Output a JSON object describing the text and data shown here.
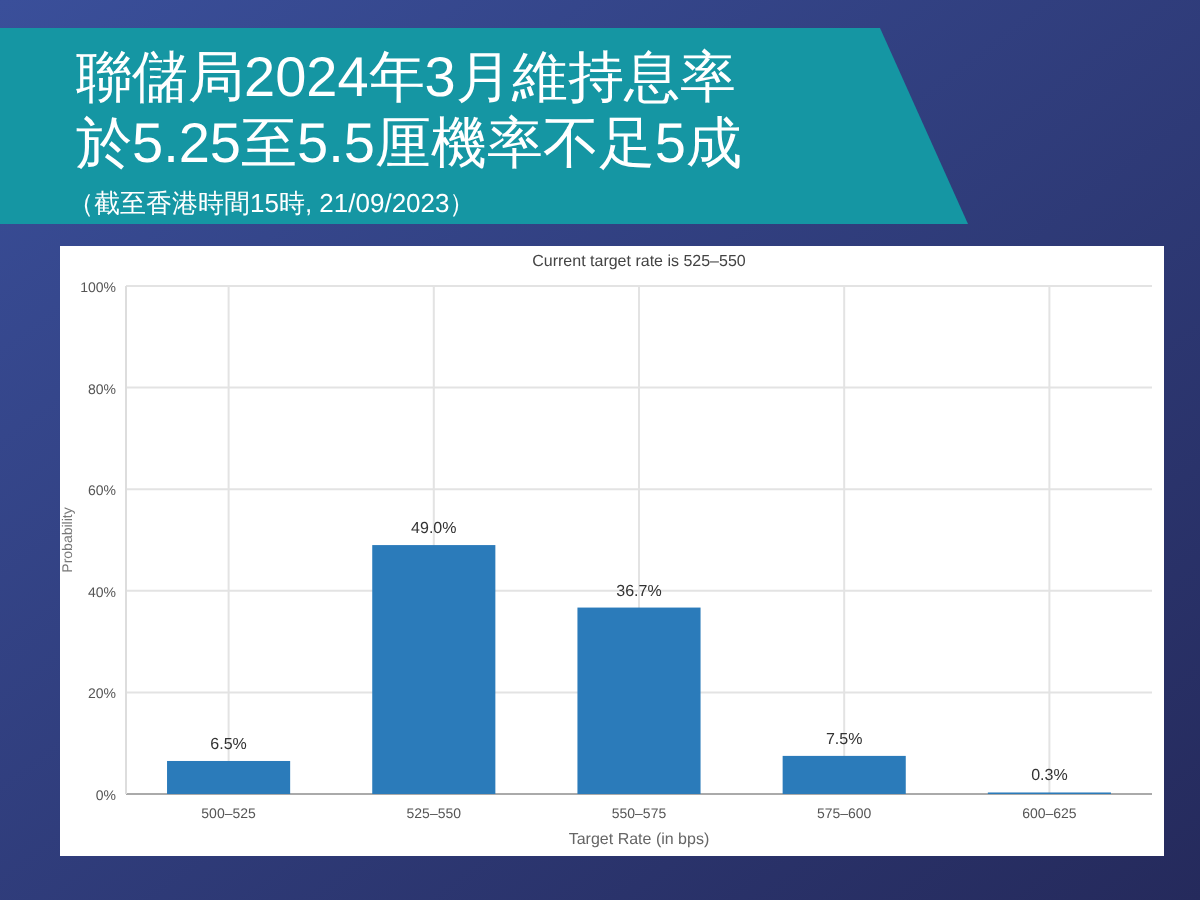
{
  "chart_data": {
    "type": "bar",
    "title": "聯儲局2024年3月維持息率於5.25至5.5厘機率不足5成",
    "subtitle": "Current target rate is 525–550",
    "annotations": [
      "（截至香港時間15時, 21/09/2023）"
    ],
    "xlabel": "Target Rate (in bps)",
    "ylabel": "Probability",
    "categories": [
      "500–525",
      "525–550",
      "550–575",
      "575–600",
      "600–625"
    ],
    "values": [
      6.5,
      49.0,
      36.7,
      7.5,
      0.3
    ],
    "color": "#2b7bba",
    "value_labels": [
      "6.5%",
      "49.0%",
      "36.7%",
      "7.5%",
      "0.3%"
    ],
    "ylim": [
      0,
      100
    ],
    "yticks": [
      {
        "value": 0,
        "label": "0%"
      },
      {
        "value": 20,
        "label": "20%"
      },
      {
        "value": 40,
        "label": "40%"
      },
      {
        "value": 60,
        "label": "60%"
      },
      {
        "value": 80,
        "label": "80%"
      },
      {
        "value": 100,
        "label": "100%"
      }
    ],
    "grid": true
  }
}
